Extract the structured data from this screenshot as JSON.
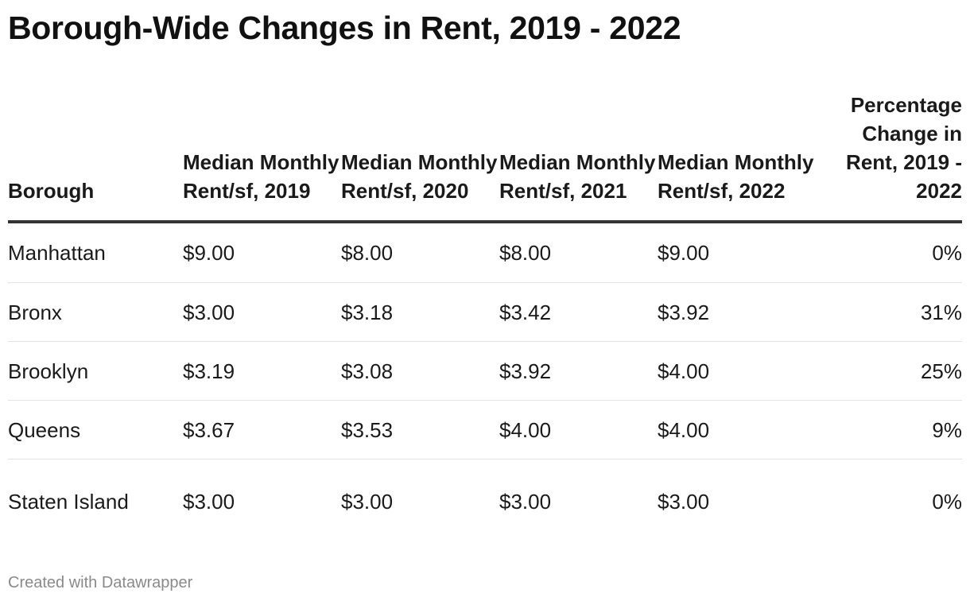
{
  "title": "Borough-Wide Changes in Rent, 2019 - 2022",
  "footer": "Created with Datawrapper",
  "colors": {
    "text": "#1a1a1a",
    "header_rule": "#333333",
    "row_rule": "#e3e3e3",
    "footer_text": "#8a8a8a"
  },
  "chart_data": {
    "type": "table",
    "title": "Borough-Wide Changes in Rent, 2019 - 2022",
    "columns": [
      "Borough",
      "Median Monthly Rent/sf, 2019",
      "Median Monthly Rent/sf, 2020",
      "Median Monthly Rent/sf, 2021",
      "Median Monthly Rent/sf, 2022",
      "Percentage Change in Rent, 2019 - 2022"
    ],
    "rows": [
      [
        "Manhattan",
        "$9.00",
        "$8.00",
        "$8.00",
        "$9.00",
        "0%"
      ],
      [
        "Bronx",
        "$3.00",
        "$3.18",
        "$3.42",
        "$3.92",
        "31%"
      ],
      [
        "Brooklyn",
        "$3.19",
        "$3.08",
        "$3.92",
        "$4.00",
        "25%"
      ],
      [
        "Queens",
        "$3.67",
        "$3.53",
        "$4.00",
        "$4.00",
        "9%"
      ],
      [
        "Staten Island",
        "$3.00",
        "$3.00",
        "$3.00",
        "$3.00",
        "0%"
      ]
    ]
  }
}
